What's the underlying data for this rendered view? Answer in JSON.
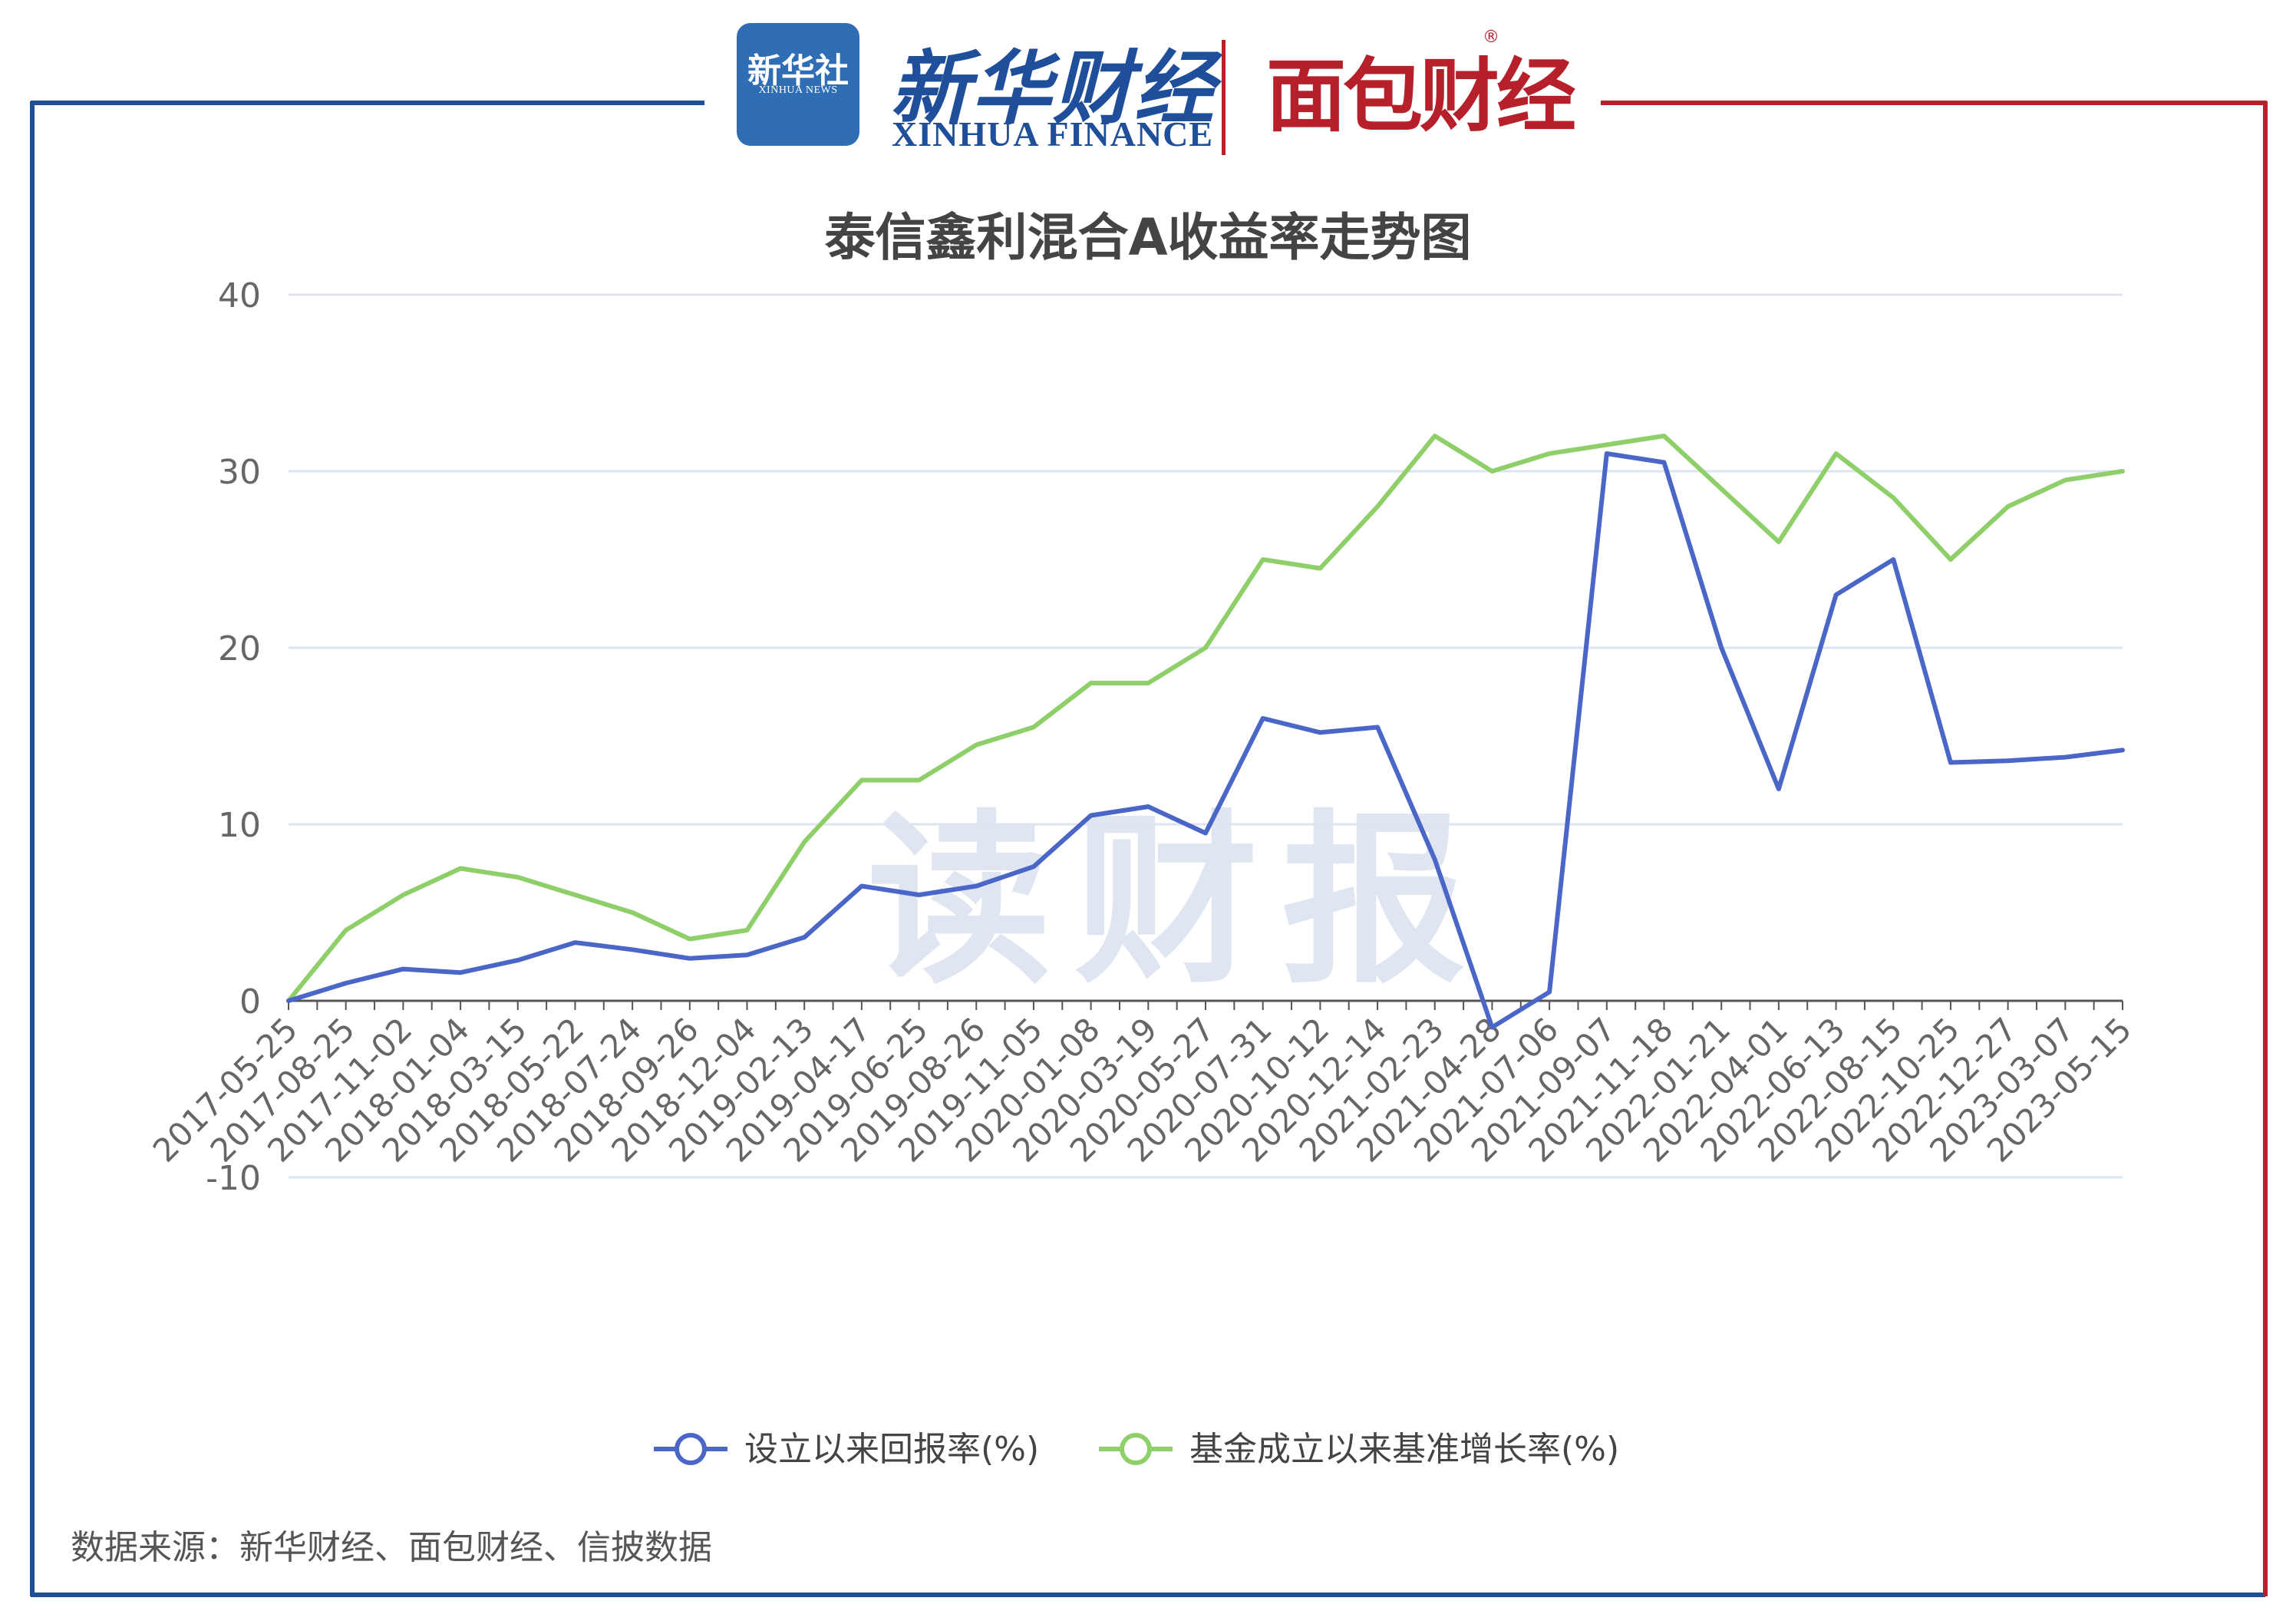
{
  "colors": {
    "frame_left": "#1f4f9a",
    "frame_right": "#b5202a",
    "series_return": "#4a66c7",
    "series_benchmark": "#8fcf6a",
    "grid": "#dde4f2",
    "axis_text": "#666666"
  },
  "header": {
    "xinhua_logo_cn": "新华社",
    "xinhua_logo_en": "XINHUA NEWS",
    "xinhua_finance_cn": "新华财经",
    "xinhua_finance_en": "XINHUA FINANCE",
    "mianbao_logo": "面包财经",
    "registered_mark": "®"
  },
  "watermark": "读财报",
  "source_note": "数据来源：新华财经、面包财经、信披数据",
  "chart_data": {
    "type": "line",
    "title": "泰信鑫利混合A收益率走势图",
    "xlabel": "",
    "ylabel": "",
    "ylim": [
      -10,
      40
    ],
    "yticks": [
      -10,
      0,
      10,
      20,
      30,
      40
    ],
    "grid": true,
    "legend_position": "bottom-center",
    "x": [
      "2017-05-25",
      "2017-08-25",
      "2017-11-02",
      "2018-01-04",
      "2018-03-15",
      "2018-05-22",
      "2018-07-24",
      "2018-09-26",
      "2018-12-04",
      "2019-02-13",
      "2019-04-17",
      "2019-06-25",
      "2019-08-26",
      "2019-11-05",
      "2020-01-08",
      "2020-03-19",
      "2020-05-27",
      "2020-07-31",
      "2020-10-12",
      "2020-12-14",
      "2021-02-23",
      "2021-04-28",
      "2021-07-06",
      "2021-09-07",
      "2021-11-18",
      "2022-01-21",
      "2022-04-01",
      "2022-06-13",
      "2022-08-15",
      "2022-10-25",
      "2022-12-27",
      "2023-03-07",
      "2023-05-15"
    ],
    "series": [
      {
        "name": "设立以来回报率(%)",
        "color": "#4a66c7",
        "values": [
          0,
          1.0,
          1.8,
          1.6,
          2.3,
          3.3,
          2.9,
          2.4,
          2.6,
          3.6,
          6.5,
          6.0,
          6.5,
          7.6,
          10.5,
          11.0,
          9.5,
          16.0,
          15.2,
          15.5,
          8.0,
          -1.5,
          0.5,
          31.0,
          30.5,
          20.0,
          12.0,
          23.0,
          25.0,
          13.5,
          13.6,
          13.8,
          14.2
        ]
      },
      {
        "name": "基金成立以来基准增长率(%)",
        "color": "#8fcf6a",
        "values": [
          0,
          4.0,
          6.0,
          7.5,
          7.0,
          6.0,
          5.0,
          3.5,
          4.0,
          9.0,
          12.5,
          12.5,
          14.5,
          15.5,
          18.0,
          18.0,
          20.0,
          25.0,
          24.5,
          28.0,
          32.0,
          30.0,
          31.0,
          31.5,
          32.0,
          29.0,
          26.0,
          31.0,
          28.5,
          25.0,
          28.0,
          29.5,
          30.0
        ]
      }
    ]
  }
}
